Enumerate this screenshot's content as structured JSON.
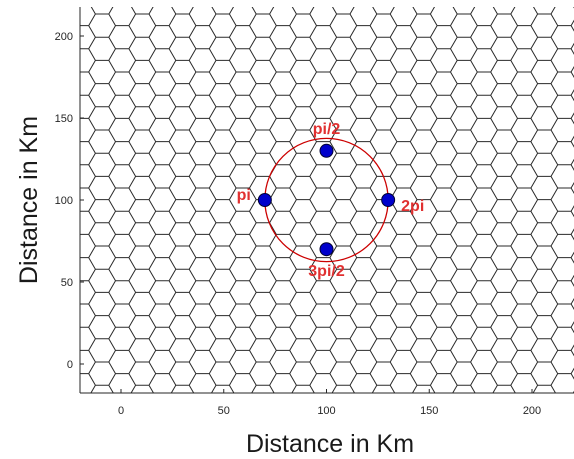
{
  "chart_data": {
    "type": "scatter",
    "xlabel": "Distance in Km",
    "ylabel": "Distance in Km",
    "xlim": [
      -20,
      220
    ],
    "ylim": [
      -20,
      220
    ],
    "x_ticks": [
      0,
      50,
      100,
      150,
      200
    ],
    "y_ticks": [
      0,
      50,
      100,
      150,
      200
    ],
    "grid": false,
    "background": "hexagonal cell grid",
    "circle": {
      "center": [
        100,
        100
      ],
      "radius": 30,
      "color": "#cc0000"
    },
    "points": [
      {
        "label": "pi/2",
        "x": 100,
        "y": 130
      },
      {
        "label": "pi",
        "x": 70,
        "y": 100
      },
      {
        "label": "2pi",
        "x": 130,
        "y": 100
      },
      {
        "label": "3pi/2",
        "x": 100,
        "y": 70
      }
    ],
    "point_color": "#0000cc",
    "label_color": "#e03030"
  }
}
